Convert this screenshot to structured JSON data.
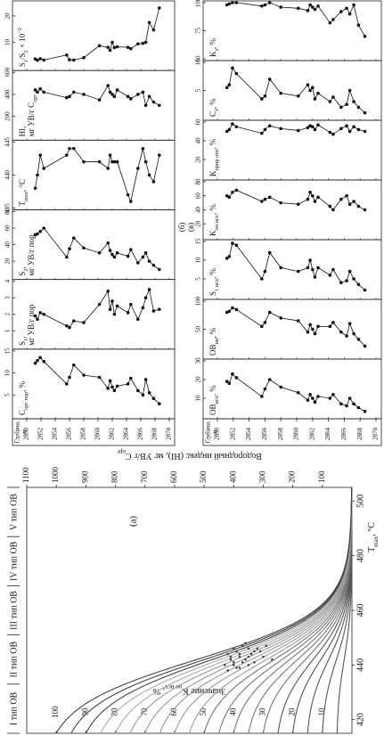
{
  "chart_data": [
    {
      "type": "kerogen",
      "panel_label": "(а)",
      "type_labels": [
        "I тип ОВ",
        "II тип ОВ",
        "III тип ОВ",
        "IV тип ОВ",
        "V тип ОВ"
      ],
      "xlabel": [
        {
          "text": "T"
        },
        {
          "text": "max",
          "sub": true
        },
        {
          "text": ", °C"
        }
      ],
      "ylabel": [
        {
          "text": "Водородный индекс (HI), мг УВ/г C"
        },
        {
          "text": "орг",
          "sub": true
        }
      ],
      "y2label": [
        {
          "text": "Значение K"
        },
        {
          "text": "он исх",
          "sub": true
        },
        {
          "text": ", %"
        }
      ],
      "xlim": [
        415,
        505
      ],
      "xticks": [
        420,
        440,
        460,
        480,
        500
      ],
      "ylim": [
        0,
        1100
      ],
      "yticks": [
        100,
        200,
        300,
        400,
        500,
        600,
        700,
        800,
        900,
        1000,
        1100
      ],
      "y2lim": [
        0,
        110
      ],
      "y2ticks": [
        10,
        20,
        30,
        40,
        50,
        60,
        70,
        80,
        90,
        100
      ],
      "series": [
        {
          "type": "curves",
          "axis": "y2",
          "values": [
            5,
            10,
            15,
            20,
            25,
            30,
            35,
            40,
            45,
            50,
            55,
            60,
            65,
            70,
            75,
            80,
            85,
            90,
            95,
            100
          ],
          "colors": [
            "#555",
            "#555",
            "#555",
            "#555",
            "#555",
            "#777",
            "#777",
            "#777",
            "#777",
            "#777",
            "#999",
            "#999",
            "#999",
            "#999",
            "#999",
            "#aaa",
            "#aaa",
            "#444",
            "#444",
            "#444"
          ]
        },
        {
          "type": "scatter",
          "color": "#444",
          "x": [
            438,
            439,
            440,
            440,
            441,
            441,
            442,
            442,
            443,
            443,
            444,
            444,
            445,
            445,
            446,
            446,
            447,
            447,
            448,
            439,
            441,
            443,
            445,
            442,
            444,
            446,
            440,
            443
          ],
          "values": [
            420,
            380,
            430,
            350,
            400,
            330,
            410,
            360,
            380,
            300,
            420,
            340,
            390,
            310,
            400,
            350,
            370,
            290,
            360,
            390,
            370,
            410,
            330,
            270,
            380,
            320,
            400,
            350
          ]
        }
      ]
    },
    {
      "type": "well_logs",
      "panel_label": "(б)",
      "depth_title": [
        "Глубина,",
        "м"
      ],
      "color": "#111",
      "ylim": [
        2850,
        2870
      ],
      "yticks": [
        2850,
        2852,
        2854,
        2856,
        2858,
        2860,
        2862,
        2864,
        2866,
        2868,
        2870
      ],
      "depths": [
        2851.2,
        2851.5,
        2851.9,
        2852.4,
        2855.6,
        2856.0,
        2856.6,
        2858.0,
        2860.2,
        2861.4,
        2861.7,
        2862.0,
        2862.3,
        2862.7,
        2864.2,
        2864.6,
        2865.6,
        2866.3,
        2866.7,
        2867.2,
        2867.8,
        2868.6
      ],
      "tracks": [
        {
          "label": [
            [
              {
                "text": "C"
              },
              {
                "text": "орг пор",
                "sub": true
              },
              {
                "text": ", %"
              }
            ]
          ],
          "xlim": [
            0,
            15
          ],
          "xticks": [
            5,
            10,
            15
          ],
          "values": [
            12.2,
            12.8,
            13.5,
            12.6,
            7.5,
            9.0,
            11.8,
            9.5,
            9.0,
            6.5,
            8.2,
            6.8,
            6.0,
            7.0,
            7.5,
            8.8,
            6.0,
            5.0,
            8.5,
            5.5,
            4.2,
            3.0
          ]
        },
        {
          "label": [
            [
              {
                "text": "S"
              },
              {
                "text": "1",
                "sub": true
              },
              {
                "text": ","
              }
            ],
            [
              {
                "text": "мг УВ/г пор"
              }
            ]
          ],
          "xlim": [
            0,
            4
          ],
          "xticks": [
            1,
            2,
            3,
            4
          ],
          "values": [
            1.9,
            1.7,
            2.1,
            2.0,
            1.3,
            1.2,
            1.6,
            1.5,
            2.6,
            3.4,
            2.3,
            2.8,
            2.0,
            2.5,
            2.1,
            2.6,
            1.7,
            2.4,
            3.0,
            3.5,
            2.2,
            2.3
          ]
        },
        {
          "label": [
            [
              {
                "text": "S"
              },
              {
                "text": "2",
                "sub": true
              },
              {
                "text": ","
              }
            ],
            [
              {
                "text": "мг УВ/г пор"
              }
            ]
          ],
          "xlim": [
            0,
            80
          ],
          "xticks": [
            20,
            40,
            60,
            80
          ],
          "values": [
            52,
            53,
            56,
            60,
            25,
            35,
            48,
            36,
            30,
            42,
            33,
            28,
            25,
            30,
            26,
            34,
            18,
            25,
            30,
            20,
            15,
            10
          ]
        },
        {
          "label": [
            [
              {
                "text": "T"
              },
              {
                "text": "max",
                "sub": true
              },
              {
                "text": ", °C"
              }
            ]
          ],
          "xlim": [
            435,
            445
          ],
          "xticks": [
            435,
            440,
            445
          ],
          "values": [
            438,
            440,
            443,
            441,
            443,
            444,
            444,
            442,
            442,
            441,
            443,
            442,
            442,
            442,
            437,
            436,
            441,
            444,
            442,
            440,
            439,
            443
          ]
        },
        {
          "label": [
            [
              {
                "text": "HI,"
              }
            ],
            [
              {
                "text": "мг УВ/г C"
              },
              {
                "text": "орг",
                "sub": true
              }
            ]
          ],
          "xlim": [
            0,
            600
          ],
          "xticks": [
            200,
            400,
            600
          ],
          "values": [
            440,
            420,
            450,
            420,
            370,
            380,
            420,
            400,
            350,
            480,
            420,
            400,
            380,
            440,
            380,
            360,
            400,
            420,
            300,
            380,
            330,
            300
          ]
        },
        {
          "label": [
            [
              {
                "text": "S"
              },
              {
                "text": "1",
                "sub": true
              },
              {
                "text": "/S"
              },
              {
                "text": "2",
                "sub": true
              },
              {
                "text": " × 10"
              },
              {
                "text": "−2",
                "sup": true
              }
            ]
          ],
          "xlim": [
            0,
            25
          ],
          "xticks": [
            10,
            20
          ],
          "values": [
            3.7,
            3.2,
            3.8,
            3.3,
            5.2,
            3.4,
            3.3,
            4.2,
            8.7,
            8.1,
            7,
            10,
            8,
            8.3,
            8.1,
            7.6,
            9.4,
            9.6,
            10,
            17.5,
            14.7,
            23
          ]
        }
      ]
    },
    {
      "type": "well_logs",
      "panel_label": "(в)",
      "depth_title": [
        "Глубина,",
        "м"
      ],
      "color": "#111",
      "ylim": [
        2850,
        2870
      ],
      "yticks": [
        2850,
        2852,
        2854,
        2856,
        2858,
        2860,
        2862,
        2864,
        2866,
        2868,
        2870
      ],
      "depths": [
        2851.2,
        2851.5,
        2851.9,
        2852.4,
        2855.6,
        2856.0,
        2856.6,
        2858.0,
        2860.2,
        2861.4,
        2861.7,
        2862.0,
        2862.3,
        2862.7,
        2864.2,
        2864.6,
        2865.6,
        2866.3,
        2866.7,
        2867.2,
        2867.8,
        2868.6
      ],
      "tracks": [
        {
          "label": [
            [
              {
                "text": "OB"
              },
              {
                "text": "исх",
                "sub": true
              },
              {
                "text": ", %"
              }
            ]
          ],
          "xlim": [
            0,
            30
          ],
          "xticks": [
            10,
            20,
            30
          ],
          "values": [
            19,
            18,
            23,
            21,
            11,
            15,
            20,
            16,
            13,
            9,
            12,
            10,
            8,
            11,
            10,
            12,
            7,
            6,
            10,
            7,
            5,
            3
          ]
        },
        {
          "label": [
            [
              {
                "text": "OB"
              },
              {
                "text": "нн",
                "sub": true
              },
              {
                "text": ", %"
              }
            ]
          ],
          "xlim": [
            0,
            100
          ],
          "xticks": [
            50,
            100
          ],
          "values": [
            80,
            82,
            88,
            85,
            55,
            62,
            80,
            70,
            65,
            45,
            58,
            50,
            42,
            55,
            55,
            62,
            45,
            38,
            60,
            42,
            32,
            20
          ]
        },
        {
          "label": [
            [
              {
                "text": "S"
              },
              {
                "text": "1 исх",
                "sub": true
              },
              {
                "text": ", %"
              }
            ]
          ],
          "xlim": [
            0,
            15
          ],
          "xticks": [
            5,
            10,
            15
          ],
          "values": [
            10.5,
            11,
            14.5,
            14,
            5,
            7,
            12,
            8,
            7,
            8,
            10,
            7.5,
            5.5,
            8,
            6,
            7.5,
            4,
            4.5,
            7,
            5,
            3.5,
            2
          ]
        },
        {
          "label": [
            [
              {
                "text": "K"
              },
              {
                "text": "он исх",
                "sub": true
              },
              {
                "text": ", %"
              }
            ]
          ],
          "xlim": [
            0,
            80
          ],
          "xticks": [
            20,
            40,
            60,
            80
          ],
          "values": [
            60,
            58,
            65,
            68,
            52,
            55,
            58,
            50,
            48,
            55,
            65,
            60,
            52,
            58,
            45,
            40,
            55,
            60,
            48,
            52,
            45,
            40
          ]
        },
        {
          "label": [
            [
              {
                "text": "K"
              },
              {
                "text": "прир отн",
                "sub": true
              },
              {
                "text": ", %"
              }
            ]
          ],
          "xlim": [
            0,
            60
          ],
          "xticks": [
            20,
            40,
            60
          ],
          "values": [
            50,
            52,
            58,
            55,
            48,
            52,
            56,
            53,
            51,
            54,
            56,
            55,
            52,
            57,
            49,
            47,
            53,
            56,
            50,
            55,
            52,
            50
          ]
        },
        {
          "label": [
            [
              {
                "text": "C"
              },
              {
                "text": "т",
                "sub": true
              },
              {
                "text": ", %"
              }
            ]
          ],
          "xlim": [
            0,
            10
          ],
          "xticks": [
            5,
            10
          ],
          "values": [
            5.5,
            6,
            9,
            8,
            3.5,
            4,
            7,
            4.5,
            4,
            6,
            5,
            5.5,
            3.5,
            4.5,
            3,
            3.8,
            2,
            2.5,
            5,
            3,
            2,
            1
          ]
        },
        {
          "label": [
            [
              {
                "text": "K"
              },
              {
                "text": "з",
                "sub": true
              },
              {
                "text": ", %"
              }
            ]
          ],
          "xlim": [
            50,
            100
          ],
          "xticks": [
            50,
            75,
            100
          ],
          "values": [
            98,
            99,
            100,
            100,
            97,
            98,
            100,
            96,
            95,
            93,
            98,
            96,
            94,
            97,
            82,
            85,
            92,
            95,
            90,
            98,
            80,
            70
          ]
        }
      ]
    }
  ]
}
